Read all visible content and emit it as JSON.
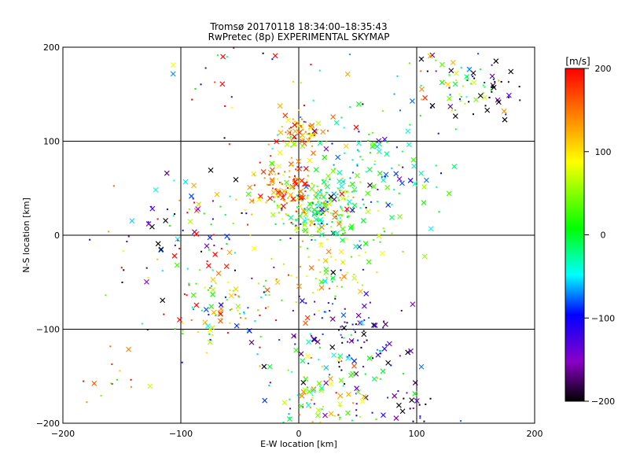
{
  "chart_data": {
    "type": "scatter",
    "title": "Tromsø 20170118 18:34:00–18:35:43",
    "subtitle": "RwPretec (8p) EXPERIMENTAL SKYMAP",
    "xlabel": "E-W location [km]",
    "ylabel": "N-S location [km]",
    "xlim": [
      -200,
      200
    ],
    "ylim": [
      -200,
      200
    ],
    "xticks": [
      -200,
      -100,
      0,
      100,
      200
    ],
    "yticks": [
      -200,
      -100,
      0,
      100,
      200
    ],
    "grid": true,
    "colorbar": {
      "label": "[m/s]",
      "range": [
        -200,
        200
      ],
      "ticks": [
        200,
        100,
        0,
        -100,
        -200
      ],
      "colormap": [
        "#000000",
        "#8b00c8",
        "#0000ff",
        "#00ffff",
        "#00ff00",
        "#ffff00",
        "#ff8000",
        "#ff0000"
      ]
    },
    "markers": [
      "cross (x)",
      "dot (+)"
    ],
    "clusters": [
      {
        "x": 20,
        "y": 25,
        "spread": 18,
        "n": 220,
        "velocity": 20,
        "vspread": 60
      },
      {
        "x": -15,
        "y": 50,
        "spread": 15,
        "n": 110,
        "velocity": 150,
        "vspread": 50
      },
      {
        "x": 0,
        "y": 110,
        "spread": 12,
        "n": 70,
        "velocity": 130,
        "vspread": 50
      },
      {
        "x": 60,
        "y": 65,
        "spread": 35,
        "n": 140,
        "velocity": -20,
        "vspread": 60
      },
      {
        "x": 130,
        "y": 160,
        "spread": 22,
        "n": 70,
        "velocity": -30,
        "vspread": 100
      },
      {
        "x": 165,
        "y": 150,
        "spread": 15,
        "n": 25,
        "velocity": -200,
        "vspread": 20
      },
      {
        "x": -60,
        "y": -85,
        "spread": 28,
        "n": 90,
        "velocity": 40,
        "vspread": 110
      },
      {
        "x": 25,
        "y": -40,
        "spread": 20,
        "n": 60,
        "velocity": 80,
        "vspread": 40
      },
      {
        "x": 45,
        "y": -110,
        "spread": 28,
        "n": 100,
        "velocity": -150,
        "vspread": 60
      },
      {
        "x": 20,
        "y": -170,
        "spread": 25,
        "n": 110,
        "velocity": 30,
        "vspread": 90
      },
      {
        "x": 85,
        "y": -185,
        "spread": 20,
        "n": 30,
        "velocity": -170,
        "vspread": 50
      },
      {
        "x": -80,
        "y": 0,
        "spread": 45,
        "n": 90,
        "velocity": 10,
        "vspread": 190
      },
      {
        "x": 0,
        "y": 185,
        "spread": 60,
        "n": 70,
        "velocity": 40,
        "vspread": 160
      },
      {
        "x": -155,
        "y": -160,
        "spread": 25,
        "n": 15,
        "velocity": 140,
        "vspread": 60
      },
      {
        "x": -110,
        "y": 10,
        "spread": 25,
        "n": 25,
        "velocity": -120,
        "vspread": 80
      }
    ]
  }
}
